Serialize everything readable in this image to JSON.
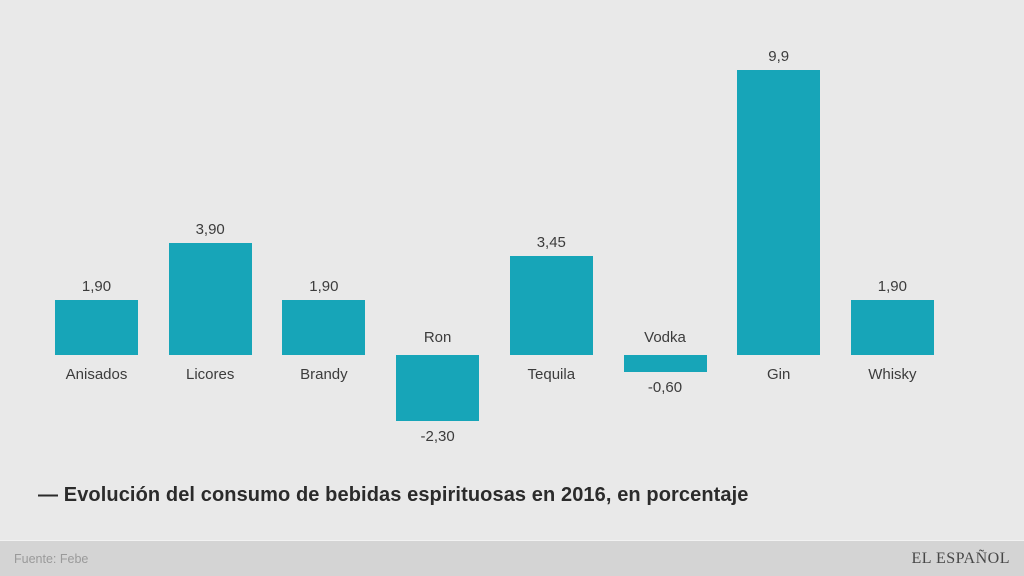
{
  "title": {
    "text": "— Evolución del consumo de bebidas espirituosas en 2016, en porcentaje"
  },
  "footer": {
    "source": "Fuente: Febe",
    "brand": "EL ESPAÑOL"
  },
  "colors": {
    "bar": "#17a5b8",
    "background": "#e9e9e9",
    "footer_background": "#d4d4d4",
    "label": "#3c3c3c",
    "title": "#2b2b2b",
    "source_text": "#9a9a9a"
  },
  "chart_data": {
    "type": "bar",
    "title": "Evolución del consumo de bebidas espirituosas en 2016, en porcentaje",
    "categories": [
      "Anisados",
      "Licores",
      "Brandy",
      "Ron",
      "Tequila",
      "Vodka",
      "Gin",
      "Whisky"
    ],
    "values": [
      1.9,
      3.9,
      1.9,
      -2.3,
      3.45,
      -0.6,
      9.9,
      1.9
    ],
    "value_labels": [
      "1,90",
      "3,90",
      "1,90",
      "-2,30",
      "3,45",
      "-0,60",
      "9,9",
      "1,90"
    ],
    "xlabel": "",
    "ylabel": "",
    "ylim": [
      -2.3,
      9.9
    ],
    "grid": false,
    "legend": false,
    "bar_color": "#17a5b8",
    "value_label_position": "outside-end",
    "category_label_position": "opposite-baseline"
  }
}
